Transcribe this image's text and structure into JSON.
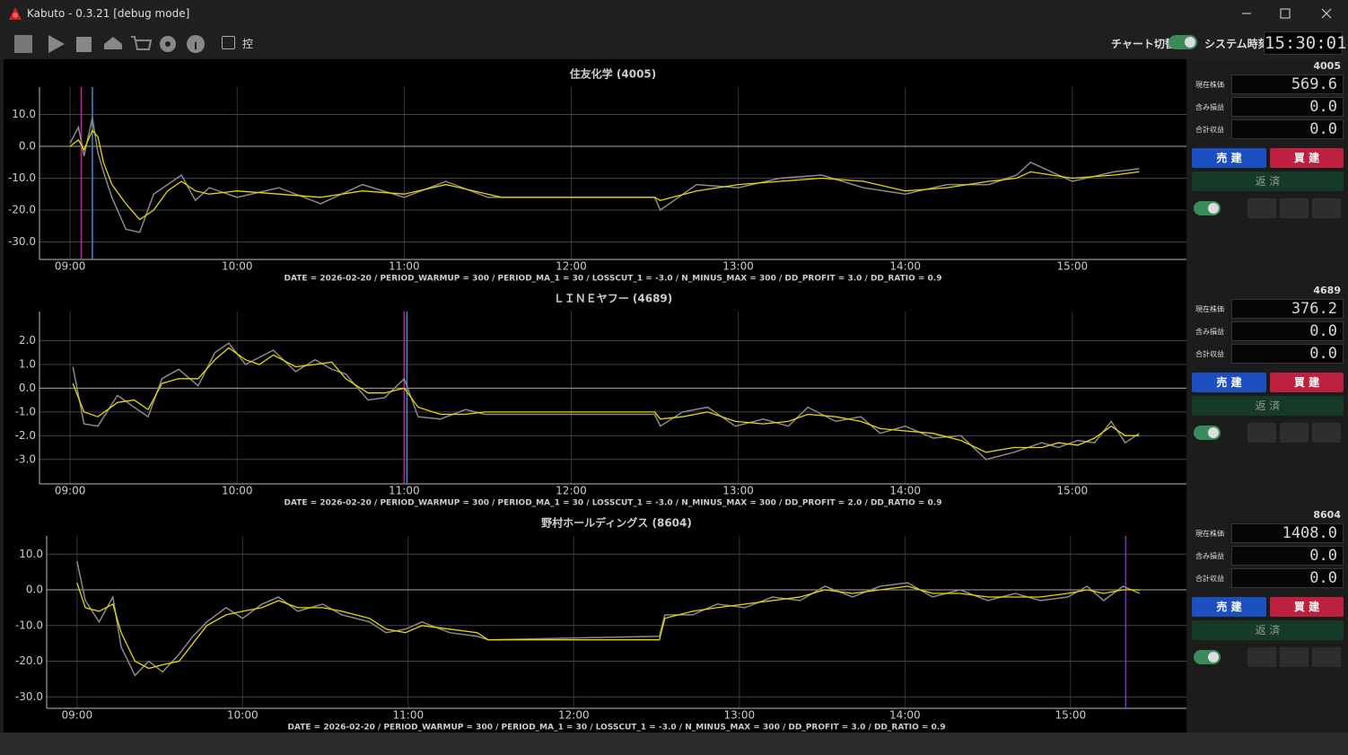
{
  "window": {
    "title": "Kabuto - 0.3.21 [debug mode]"
  },
  "toolbar": {
    "checkbox_label": "控",
    "chart_switch_label": "チャート切替",
    "system_time_label": "システム時刻",
    "system_time": "15:30:01"
  },
  "chart_data": [
    {
      "type": "line",
      "title": "住友化学 (4005)",
      "footer": "DATE = 2026-02-20 / PERIOD_WARMUP = 300 / PERIOD_MA_1 = 30 / LOSSCUT_1 = -3.0 / N_MINUS_MAX = 300 / DD_PROFIT = 3.0 / DD_RATIO = 0.9",
      "x": [
        "09:00",
        "09:03",
        "09:05",
        "09:08",
        "09:10",
        "09:12",
        "09:15",
        "09:20",
        "09:25",
        "09:30",
        "09:35",
        "09:40",
        "09:45",
        "09:50",
        "10:00",
        "10:15",
        "10:30",
        "10:45",
        "11:00",
        "11:15",
        "11:30",
        "11:35",
        "12:30",
        "12:32",
        "12:45",
        "13:00",
        "13:15",
        "13:30",
        "13:45",
        "14:00",
        "14:15",
        "14:30",
        "14:40",
        "14:45",
        "15:00",
        "15:15",
        "15:24"
      ],
      "series": [
        {
          "color": "#8a8a8a",
          "values": [
            1,
            6,
            -3,
            9,
            -2,
            -8,
            -16,
            -26,
            -27,
            -15,
            -12,
            -9,
            -17,
            -13,
            -16,
            -13,
            -18,
            -12,
            -16,
            -11,
            -16,
            -16,
            -16,
            -20,
            -12,
            -13,
            -10,
            -9,
            -13,
            -15,
            -12,
            -12,
            -9,
            -5,
            -11,
            -8,
            -7
          ]
        },
        {
          "color": "#e8d800",
          "values": [
            0,
            2,
            -1,
            5,
            3,
            -5,
            -12,
            -18,
            -23,
            -20,
            -14,
            -11,
            -14,
            -15,
            -14,
            -15,
            -16,
            -14,
            -15,
            -12,
            -15,
            -16,
            -16,
            -17,
            -14,
            -12,
            -11,
            -10,
            -11,
            -14,
            -13,
            -11,
            -10,
            -8,
            -10,
            -9,
            -8
          ]
        }
      ],
      "xlim": [
        "08:49",
        "15:41"
      ],
      "xticks": [
        "09:00",
        "10:00",
        "11:00",
        "12:00",
        "13:00",
        "14:00",
        "15:00"
      ],
      "ylim": [
        -35.5,
        18.6
      ],
      "yticks": [
        {
          "value": 10,
          "label": "10.0"
        },
        {
          "value": 0,
          "label": "0.0"
        },
        {
          "value": -10,
          "label": "-10.0"
        },
        {
          "value": -20,
          "label": "-20.0"
        },
        {
          "value": -30,
          "label": "-30.0"
        }
      ],
      "vlines": [
        {
          "x": "09:04",
          "color": "#d0209a"
        },
        {
          "x": "09:08",
          "color": "#3a8fd0"
        }
      ],
      "grid": true
    },
    {
      "type": "line",
      "title": "ＬＩＮＥヤフー (4689)",
      "footer": "DATE = 2026-02-20 / PERIOD_WARMUP = 300 / PERIOD_MA_1 = 30 / LOSSCUT_1 = -3.0 / N_MINUS_MAX = 300 / DD_PROFIT = 2.0 / DD_RATIO = 0.9",
      "x": [
        "09:01",
        "09:05",
        "09:10",
        "09:17",
        "09:23",
        "09:28",
        "09:33",
        "09:39",
        "09:46",
        "09:52",
        "09:57",
        "10:03",
        "10:08",
        "10:13",
        "10:21",
        "10:28",
        "10:34",
        "10:39",
        "10:47",
        "10:53",
        "11:00",
        "11:05",
        "11:13",
        "11:22",
        "11:29",
        "12:30",
        "12:32",
        "12:40",
        "12:49",
        "12:59",
        "13:09",
        "13:18",
        "13:25",
        "13:35",
        "13:44",
        "13:51",
        "14:00",
        "14:10",
        "14:20",
        "14:29",
        "14:39",
        "14:49",
        "14:55",
        "15:02",
        "15:08",
        "15:14",
        "15:19",
        "15:24"
      ],
      "series": [
        {
          "color": "#8a8a8a",
          "values": [
            0.9,
            -1.5,
            -1.6,
            -0.3,
            -0.8,
            -1.2,
            0.4,
            0.8,
            0.1,
            1.5,
            1.9,
            1.0,
            1.3,
            1.6,
            0.7,
            1.2,
            0.8,
            0.6,
            -0.5,
            -0.4,
            0.4,
            -1.2,
            -1.3,
            -0.9,
            -1.1,
            -1.1,
            -1.6,
            -1.0,
            -0.8,
            -1.6,
            -1.3,
            -1.6,
            -0.8,
            -1.4,
            -1.2,
            -1.9,
            -1.6,
            -2.1,
            -2.0,
            -3.0,
            -2.7,
            -2.3,
            -2.5,
            -2.2,
            -2.3,
            -1.4,
            -2.3,
            -1.9
          ]
        },
        {
          "color": "#e8d800",
          "values": [
            0.2,
            -1.0,
            -1.2,
            -0.6,
            -0.5,
            -0.9,
            0.2,
            0.4,
            0.4,
            1.2,
            1.7,
            1.2,
            1.0,
            1.4,
            0.9,
            1.0,
            1.1,
            0.4,
            -0.2,
            -0.2,
            0.0,
            -0.8,
            -1.1,
            -1.1,
            -1.0,
            -1.0,
            -1.3,
            -1.2,
            -1.0,
            -1.4,
            -1.5,
            -1.4,
            -1.1,
            -1.2,
            -1.4,
            -1.7,
            -1.8,
            -1.9,
            -2.2,
            -2.7,
            -2.5,
            -2.5,
            -2.3,
            -2.4,
            -2.1,
            -1.6,
            -2.0,
            -2.0
          ]
        }
      ],
      "xlim": [
        "08:49",
        "15:41"
      ],
      "xticks": [
        "09:00",
        "10:00",
        "11:00",
        "12:00",
        "13:00",
        "14:00",
        "15:00"
      ],
      "ylim": [
        -4.03,
        3.23
      ],
      "yticks": [
        {
          "value": 2,
          "label": "2.0"
        },
        {
          "value": 1,
          "label": "1.0"
        },
        {
          "value": 0,
          "label": "0.0"
        },
        {
          "value": -1,
          "label": "-1.0"
        },
        {
          "value": -2,
          "label": "-2.0"
        },
        {
          "value": -3,
          "label": "-3.0"
        }
      ],
      "vlines": [
        {
          "x": "11:00",
          "color": "#d0209a"
        },
        {
          "x": "11:01",
          "color": "#3a8fd0"
        }
      ],
      "grid": true
    },
    {
      "type": "line",
      "title": "野村ホールディングス (8604)",
      "footer": "DATE = 2026-02-20 / PERIOD_WARMUP = 300 / PERIOD_MA_1 = 30 / LOSSCUT_1 = -3.0 / N_MINUS_MAX = 300 / DD_PROFIT = 3.0 / DD_RATIO = 0.9",
      "x": [
        "09:00",
        "09:03",
        "09:08",
        "09:13",
        "09:16",
        "09:21",
        "09:26",
        "09:31",
        "09:37",
        "09:42",
        "09:47",
        "09:54",
        "10:00",
        "10:07",
        "10:13",
        "10:20",
        "10:29",
        "10:36",
        "10:46",
        "10:52",
        "10:59",
        "11:05",
        "11:15",
        "11:25",
        "11:29",
        "12:31",
        "12:33",
        "12:43",
        "12:52",
        "13:02",
        "13:12",
        "13:22",
        "13:31",
        "13:41",
        "13:51",
        "14:01",
        "14:10",
        "14:20",
        "14:30",
        "14:40",
        "14:49",
        "14:59",
        "15:06",
        "15:12",
        "15:19",
        "15:25"
      ],
      "series": [
        {
          "color": "#8a8a8a",
          "values": [
            8,
            -3,
            -9,
            -2,
            -16,
            -24,
            -20,
            -23,
            -18,
            -13,
            -9,
            -5,
            -8,
            -4,
            -2,
            -6,
            -4,
            -7,
            -9,
            -12,
            -11,
            -9,
            -12,
            -13,
            -14,
            -13,
            -7,
            -7,
            -4,
            -5,
            -2,
            -3,
            1,
            -2,
            1,
            2,
            -2,
            0,
            -3,
            -1,
            -3,
            -2,
            1,
            -3,
            1,
            -1
          ]
        },
        {
          "color": "#e8d800",
          "values": [
            2,
            -5,
            -6,
            -4,
            -12,
            -20,
            -22,
            -21,
            -20,
            -15,
            -10,
            -7,
            -6,
            -5,
            -3,
            -5,
            -5,
            -6,
            -8,
            -11,
            -12,
            -10,
            -11,
            -12,
            -14,
            -14,
            -8,
            -6,
            -5,
            -4,
            -3,
            -2,
            0,
            -1,
            0,
            1,
            -1,
            -1,
            -2,
            -2,
            -2,
            -1,
            0,
            -1,
            0,
            0
          ]
        }
      ],
      "xlim": [
        "08:49",
        "15:42"
      ],
      "xticks": [
        "09:00",
        "10:00",
        "11:00",
        "12:00",
        "13:00",
        "14:00",
        "15:00"
      ],
      "ylim": [
        -33.2,
        15.1
      ],
      "yticks": [
        {
          "value": 10,
          "label": "10.0"
        },
        {
          "value": 0,
          "label": "0.0"
        },
        {
          "value": -10,
          "label": "-10.0"
        },
        {
          "value": -20,
          "label": "-20.0"
        },
        {
          "value": -30,
          "label": "-30.0"
        }
      ],
      "vlines": [
        {
          "x": "15:20",
          "color": "#8a30c0"
        }
      ],
      "grid": true
    }
  ],
  "panels": [
    {
      "code": "4005",
      "rows": [
        {
          "label": "現在株価",
          "value": "569.6"
        },
        {
          "label": "含み損益",
          "value": "0.0"
        },
        {
          "label": "合計収益",
          "value": "0.0"
        }
      ],
      "sell": "売 建",
      "buy": "買 建",
      "close": "返 済"
    },
    {
      "code": "4689",
      "rows": [
        {
          "label": "現在株価",
          "value": "376.2"
        },
        {
          "label": "含み損益",
          "value": "0.0"
        },
        {
          "label": "合計収益",
          "value": "0.0"
        }
      ],
      "sell": "売 建",
      "buy": "買 建",
      "close": "返 済"
    },
    {
      "code": "8604",
      "rows": [
        {
          "label": "現在株価",
          "value": "1408.0"
        },
        {
          "label": "含み損益",
          "value": "0.0"
        },
        {
          "label": "合計収益",
          "value": "0.0"
        }
      ],
      "sell": "売 建",
      "buy": "買 建",
      "close": "返 済"
    }
  ]
}
